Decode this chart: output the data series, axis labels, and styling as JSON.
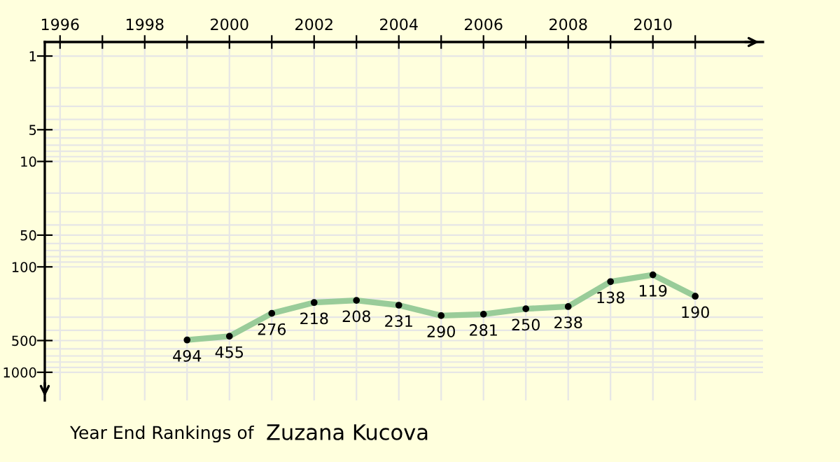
{
  "chart_data": {
    "type": "line",
    "title": "Year End Rankings of",
    "subtitle": "Zuzana Kucova",
    "x": [
      1999,
      2000,
      2001,
      2002,
      2003,
      2004,
      2005,
      2006,
      2007,
      2008,
      2009,
      2010,
      2011
    ],
    "series": [
      {
        "color": "#99cc99",
        "values": [
          494,
          455,
          276,
          218,
          208,
          231,
          290,
          281,
          250,
          238,
          138,
          119,
          190
        ]
      }
    ],
    "data_labels": true,
    "marker": "circle",
    "line_style": "solid",
    "log": true,
    "grid": true,
    "xlim": [
      1995.64,
      2012.6
    ],
    "ylim": [
      1848,
      0.736
    ],
    "xticks": [
      1996,
      {
        "value": 1997,
        "label": null
      },
      1998,
      {
        "value": 1999,
        "label": null
      },
      2000,
      {
        "value": 2001,
        "label": null
      },
      2002,
      {
        "value": 2003,
        "label": null
      },
      2004,
      {
        "value": 2005,
        "label": null
      },
      2006,
      {
        "value": 2007,
        "label": null
      },
      2008,
      {
        "value": 2009,
        "label": null
      },
      2010,
      {
        "value": 2011,
        "label": null
      }
    ],
    "yticks": [
      1,
      {
        "value": 2,
        "label": null
      },
      {
        "value": 3,
        "label": null
      },
      {
        "value": 4,
        "label": null
      },
      5,
      {
        "value": 6,
        "label": null
      },
      {
        "value": 7,
        "label": null
      },
      {
        "value": 8,
        "label": null
      },
      {
        "value": 9,
        "label": null
      },
      10,
      {
        "value": 20,
        "label": null
      },
      {
        "value": 30,
        "label": null
      },
      {
        "value": 40,
        "label": null
      },
      50,
      {
        "value": 60,
        "label": null
      },
      {
        "value": 70,
        "label": null
      },
      {
        "value": 80,
        "label": null
      },
      {
        "value": 90,
        "label": null
      },
      100,
      {
        "value": 200,
        "label": null
      },
      {
        "value": 300,
        "label": null
      },
      {
        "value": 400,
        "label": null
      },
      500,
      {
        "value": 600,
        "label": null
      },
      {
        "value": 700,
        "label": null
      },
      {
        "value": 800,
        "label": null
      },
      {
        "value": 900,
        "label": null
      },
      1000
    ]
  }
}
